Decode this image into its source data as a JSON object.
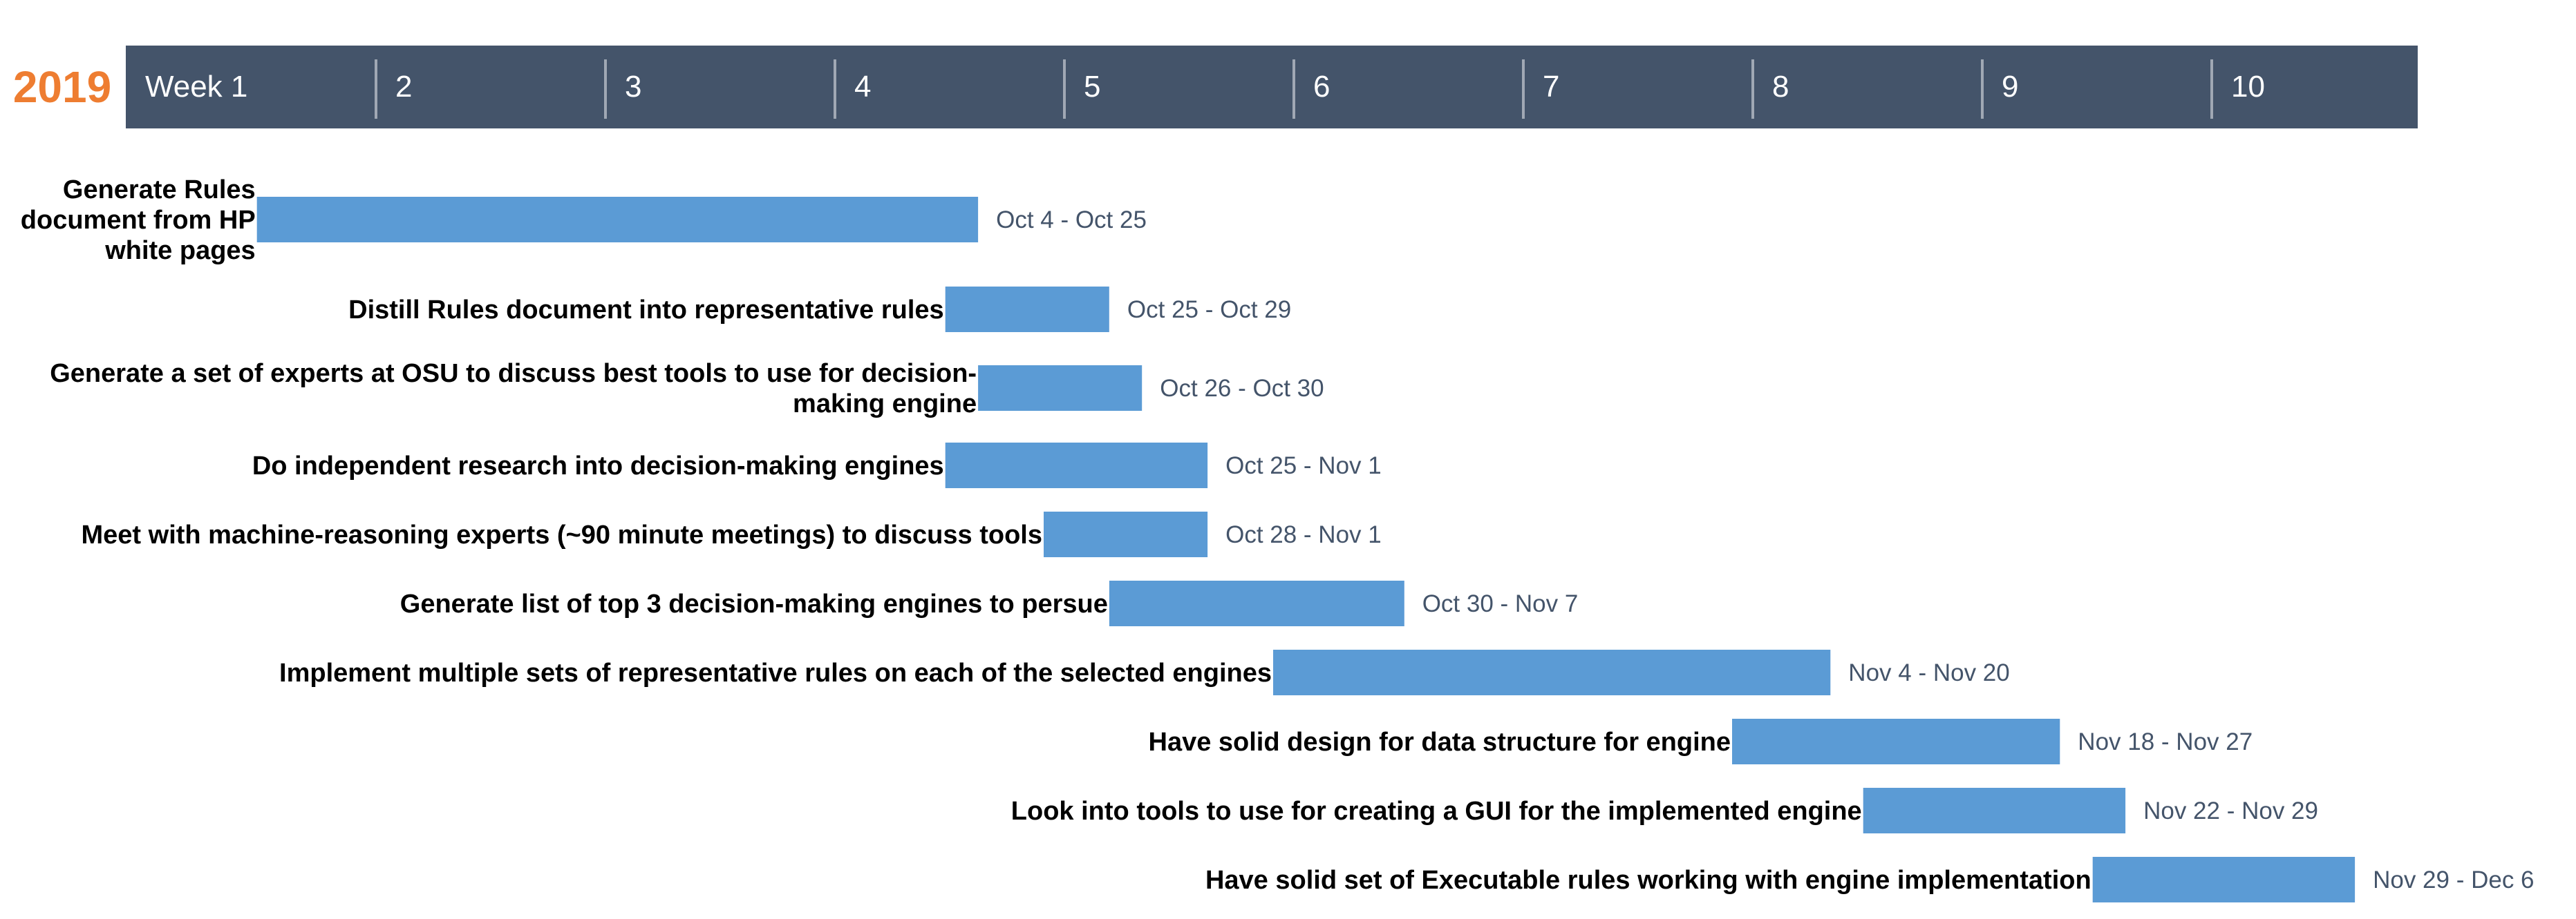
{
  "colors": {
    "year": "#ee7d31",
    "header_bg": "#44546a",
    "header_text": "#ffffff",
    "divider": "#a0a8b4",
    "bar": "#5b9bd5",
    "task_label": "#000000",
    "date_label": "#44546a"
  },
  "chart_data": {
    "type": "bar",
    "orientation": "gantt",
    "year_label": "2019",
    "week_labels": [
      "Week 1",
      "2",
      "3",
      "4",
      "5",
      "6",
      "7",
      "8",
      "9",
      "10"
    ],
    "week_start": "2019-09-30",
    "grid": false,
    "tasks": [
      {
        "name": "Generate Rules document from HP white pages",
        "lines": [
          "Generate Rules",
          "document from HP",
          "white pages"
        ],
        "start": "2019-10-04",
        "end": "2019-10-25",
        "date_label": "Oct 4 - Oct 25"
      },
      {
        "name": "Distill Rules document into representative rules",
        "lines": [
          "Distill Rules document into representative rules"
        ],
        "start": "2019-10-25",
        "end": "2019-10-29",
        "date_label": "Oct 25 - Oct 29"
      },
      {
        "name": "Generate a set of experts at OSU to discuss best tools to use for decision-making engine",
        "lines": [
          "Generate a set of experts at OSU to discuss best tools to use for decision-",
          "making engine"
        ],
        "start": "2019-10-26",
        "end": "2019-10-30",
        "date_label": "Oct 26 - Oct 30"
      },
      {
        "name": "Do independent research into decision-making engines",
        "lines": [
          "Do independent research into decision-making engines"
        ],
        "start": "2019-10-25",
        "end": "2019-11-01",
        "date_label": "Oct 25 - Nov 1"
      },
      {
        "name": "Meet with machine-reasoning experts (~90 minute meetings) to discuss tools",
        "lines": [
          "Meet with machine-reasoning experts (~90 minute meetings) to discuss tools"
        ],
        "start": "2019-10-28",
        "end": "2019-11-01",
        "date_label": "Oct 28 - Nov 1"
      },
      {
        "name": "Generate list of top 3 decision-making engines to persue",
        "lines": [
          "Generate list of top 3 decision-making engines to persue"
        ],
        "start": "2019-10-30",
        "end": "2019-11-07",
        "date_label": "Oct 30 - Nov 7"
      },
      {
        "name": "Implement multiple sets of representative rules on each of the selected engines",
        "lines": [
          "Implement multiple sets of representative rules on each of the selected engines"
        ],
        "start": "2019-11-04",
        "end": "2019-11-20",
        "date_label": "Nov 4 - Nov 20"
      },
      {
        "name": "Have solid design for data structure for engine",
        "lines": [
          "Have solid design for data structure for engine"
        ],
        "start": "2019-11-18",
        "end": "2019-11-27",
        "date_label": "Nov 18 - Nov 27"
      },
      {
        "name": "Look into tools to use for creating a GUI for the implemented engine",
        "lines": [
          "Look into tools to use for creating a GUI for the implemented engine"
        ],
        "start": "2019-11-22",
        "end": "2019-11-29",
        "date_label": "Nov 22 - Nov 29"
      },
      {
        "name": "Have solid set of Executable rules working with engine implementation",
        "lines": [
          "Have solid set of Executable rules working with engine implementation"
        ],
        "start": "2019-11-29",
        "end": "2019-12-06",
        "date_label": "Nov 29 - Dec 6"
      }
    ]
  }
}
